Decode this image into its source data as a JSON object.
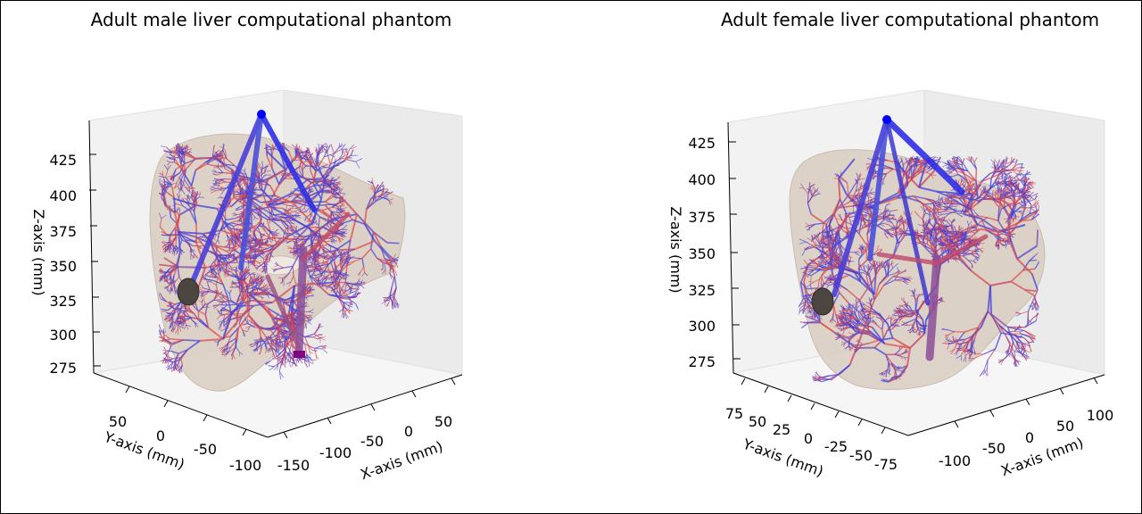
{
  "chart_data": [
    {
      "type": "scatter",
      "subtype": "3d-vessel-tree",
      "title": "Adult male liver computational phantom",
      "xlabel": "X-axis (mm)",
      "ylabel": "Y-axis (mm)",
      "zlabel": "Z-axis (mm)",
      "x_ticks": [
        -150,
        -100,
        -50,
        0,
        50
      ],
      "y_ticks": [
        50,
        0,
        -50,
        -100
      ],
      "z_ticks": [
        275,
        300,
        325,
        350,
        375,
        400,
        425
      ],
      "series": [
        {
          "color": "#0000ff"
        },
        {
          "color": "#e03030"
        },
        {
          "color": "#800080"
        },
        {
          "color": "#d8ccc0"
        }
      ]
    },
    {
      "type": "scatter",
      "subtype": "3d-vessel-tree",
      "title": "Adult female liver computational phantom",
      "xlabel": "X-axis (mm)",
      "ylabel": "Y-axis (mm)",
      "zlabel": "Z-axis (mm)",
      "x_ticks": [
        -100,
        -50,
        0,
        50,
        100
      ],
      "y_ticks": [
        75,
        50,
        25,
        0,
        -25,
        -50,
        -75
      ],
      "z_ticks": [
        275,
        300,
        325,
        350,
        375,
        400,
        425
      ],
      "series": [
        {
          "color": "#0000ff"
        },
        {
          "color": "#e03030"
        },
        {
          "color": "#800080"
        },
        {
          "color": "#d8ccc0"
        }
      ]
    }
  ]
}
